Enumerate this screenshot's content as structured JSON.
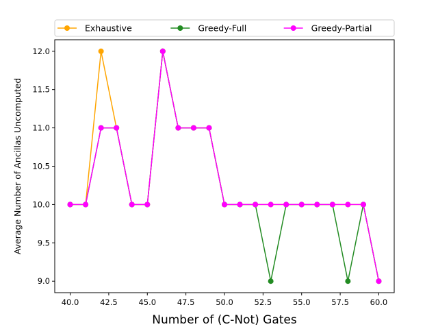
{
  "chart_data": {
    "type": "line",
    "xlabel": "Number of (C-Not) Gates",
    "ylabel": "Average Number of Ancillas Uncomputed",
    "xlim": [
      39.0,
      61.0
    ],
    "ylim": [
      8.85,
      12.15
    ],
    "xticks": [
      "40.0",
      "42.5",
      "45.0",
      "47.5",
      "50.0",
      "52.5",
      "55.0",
      "57.5",
      "60.0"
    ],
    "yticks": [
      "9.0",
      "9.5",
      "10.0",
      "10.5",
      "11.0",
      "11.5",
      "12.0"
    ],
    "grid": false,
    "legend_position": "top",
    "x": [
      40,
      41,
      42,
      43,
      44,
      45,
      46,
      47,
      48,
      49,
      50,
      51,
      52,
      53,
      54,
      55,
      56,
      57,
      58,
      59,
      60
    ],
    "series": [
      {
        "name": "Exhaustive",
        "color": "#ffa500",
        "marker": "circle",
        "values": [
          10,
          10,
          12,
          11,
          10,
          10,
          12,
          11,
          11,
          11,
          10,
          10,
          10,
          10,
          10,
          10,
          10,
          10,
          10,
          10,
          9
        ]
      },
      {
        "name": "Greedy-Full",
        "color": "#228b22",
        "marker": "circle",
        "values": [
          10,
          10,
          11,
          11,
          10,
          10,
          12,
          11,
          11,
          11,
          10,
          10,
          10,
          9,
          10,
          10,
          10,
          10,
          9,
          10,
          9
        ]
      },
      {
        "name": "Greedy-Partial",
        "color": "#ff00ff",
        "marker": "circle",
        "values": [
          10,
          10,
          11,
          11,
          10,
          10,
          12,
          11,
          11,
          11,
          10,
          10,
          10,
          10,
          10,
          10,
          10,
          10,
          10,
          10,
          9
        ]
      }
    ]
  }
}
